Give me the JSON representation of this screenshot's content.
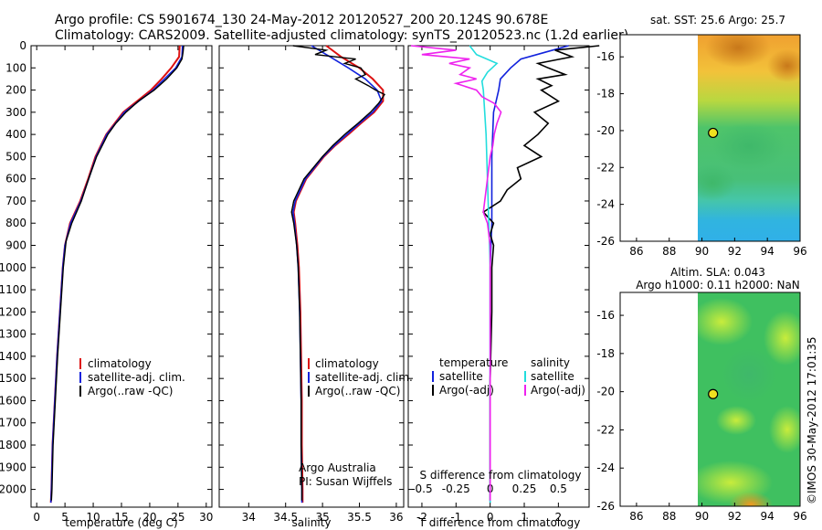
{
  "header": {
    "line1": "Argo profile: CS 5901674_130 24-May-2012 20120527_200 20.124S 90.678E",
    "line2": "Climatology: CARS2009. Satellite-adjusted climatology: synTS_20120523.nc (1.2d earlier)"
  },
  "colors": {
    "climatology": "#dd1111",
    "satellite": "#1122dd",
    "argo": "#000000",
    "sal_satellite": "#22dddd",
    "sal_argo": "#ee22ee"
  },
  "chart_data": [
    {
      "type": "line",
      "id": "temperature",
      "xlabel": "temperature (deg C)",
      "xlim": [
        -1,
        31
      ],
      "ylim": [
        2080,
        0
      ],
      "xticks": [
        "0",
        "5",
        "10",
        "15",
        "20",
        "25",
        "30"
      ],
      "yticks": [
        "0",
        "100",
        "200",
        "300",
        "400",
        "500",
        "600",
        "700",
        "800",
        "900",
        "1000",
        "1100",
        "1200",
        "1300",
        "1400",
        "1500",
        "1600",
        "1700",
        "1800",
        "1900",
        "2000"
      ],
      "legend": [
        "climatology",
        "satellite-adj. clim.",
        "Argo(..raw -QC)"
      ],
      "series": [
        {
          "name": "climatology",
          "depth": [
            0,
            50,
            100,
            150,
            200,
            300,
            400,
            500,
            600,
            700,
            800,
            900,
            1000,
            1200,
            1400,
            1600,
            1800,
            2000,
            2060
          ],
          "values": [
            25.3,
            25.2,
            23.8,
            22.1,
            20.2,
            15.3,
            12.3,
            10.4,
            9.1,
            7.7,
            5.9,
            5.0,
            4.6,
            4.1,
            3.6,
            3.2,
            2.8,
            2.6,
            2.5
          ]
        },
        {
          "name": "satellite-adj. clim.",
          "depth": [
            0,
            50,
            100,
            150,
            200,
            300,
            400,
            500,
            600,
            700,
            800,
            900,
            1000,
            1200,
            1400,
            1600,
            1800,
            2000,
            2060
          ],
          "values": [
            25.8,
            25.7,
            24.6,
            22.6,
            20.6,
            15.5,
            12.4,
            10.5,
            9.2,
            7.8,
            6.0,
            5.0,
            4.6,
            4.1,
            3.6,
            3.2,
            2.8,
            2.6,
            2.5
          ]
        },
        {
          "name": "Argo(..raw -QC)",
          "depth": [
            0,
            30,
            60,
            100,
            150,
            200,
            250,
            300,
            350,
            400,
            500,
            600,
            700,
            800,
            880,
            1000,
            1200,
            1400,
            1600,
            1800,
            2000,
            2050
          ],
          "values": [
            26.0,
            25.9,
            25.7,
            24.8,
            23.0,
            20.8,
            18.0,
            15.8,
            14.0,
            12.6,
            10.6,
            9.2,
            7.9,
            6.2,
            5.2,
            4.7,
            4.2,
            3.7,
            3.3,
            2.9,
            2.7,
            2.6
          ]
        }
      ]
    },
    {
      "type": "line",
      "id": "salinity",
      "xlabel": "salinity",
      "xlim": [
        33.6,
        36.1
      ],
      "ylim": [
        2080,
        0
      ],
      "xticks": [
        "34",
        "34.5",
        "35",
        "35.5",
        "36"
      ],
      "legend": [
        "climatology",
        "satellite-adj. clim.",
        "Argo(..raw -QC)"
      ],
      "annotation": [
        "Argo Australia",
        "PI: Susan Wijffels"
      ],
      "series": [
        {
          "name": "climatology",
          "depth": [
            0,
            50,
            100,
            150,
            200,
            250,
            300,
            350,
            400,
            450,
            500,
            600,
            700,
            750,
            800,
            900,
            1000,
            1200,
            1400,
            1600,
            1800,
            2000,
            2060
          ],
          "values": [
            35.05,
            35.25,
            35.5,
            35.68,
            35.82,
            35.82,
            35.7,
            35.52,
            35.35,
            35.17,
            35.02,
            34.78,
            34.64,
            34.61,
            34.63,
            34.66,
            34.68,
            34.7,
            34.71,
            34.72,
            34.72,
            34.73,
            34.73
          ]
        },
        {
          "name": "satellite-adj. clim.",
          "depth": [
            0,
            50,
            100,
            150,
            200,
            250,
            300,
            350,
            400,
            450,
            500,
            600,
            700,
            750,
            800,
            900,
            1000,
            1200,
            1400,
            1600,
            1800,
            2000,
            2060
          ],
          "values": [
            34.85,
            35.1,
            35.35,
            35.58,
            35.74,
            35.8,
            35.68,
            35.5,
            35.33,
            35.16,
            35.01,
            34.77,
            34.63,
            34.6,
            34.62,
            34.65,
            34.67,
            34.69,
            34.7,
            34.71,
            34.71,
            34.72,
            34.72
          ]
        },
        {
          "name": "Argo(..raw -QC)",
          "depth": [
            0,
            20,
            40,
            60,
            80,
            100,
            130,
            150,
            180,
            200,
            220,
            240,
            260,
            300,
            350,
            400,
            450,
            500,
            600,
            700,
            750,
            800,
            900,
            1000,
            1200,
            1400,
            1600,
            1800,
            2000,
            2050
          ],
          "values": [
            34.6,
            35.05,
            34.9,
            35.45,
            35.3,
            35.52,
            35.58,
            35.45,
            35.62,
            35.72,
            35.84,
            35.8,
            35.76,
            35.65,
            35.48,
            35.3,
            35.14,
            35.0,
            34.75,
            34.61,
            34.58,
            34.61,
            34.65,
            34.67,
            34.69,
            34.7,
            34.71,
            34.71,
            34.72,
            34.72
          ]
        }
      ]
    },
    {
      "type": "line",
      "id": "difference",
      "xlabel": "T difference from climatology",
      "top_label": "S difference from climatology",
      "xlim": [
        -2.4,
        2.9
      ],
      "ylim": [
        2080,
        0
      ],
      "xticks": [
        "-2",
        "-1",
        "0",
        "1",
        "2"
      ],
      "top_ticks": [
        "-0.5",
        "-0.25",
        "0",
        "0.25",
        "0.5"
      ],
      "legend_temperature": {
        "title": "temperature",
        "items": [
          "satellite",
          "Argo(-adj)"
        ]
      },
      "legend_salinity": {
        "title": "salinity",
        "items": [
          "satellite",
          "Argo(-adj)"
        ]
      },
      "series": [
        {
          "name": "temperature satellite",
          "depth": [
            0,
            30,
            60,
            100,
            150,
            200,
            300,
            500,
            800,
            1000,
            1500,
            2060
          ],
          "values": [
            2.3,
            1.6,
            0.9,
            0.6,
            0.3,
            0.25,
            0.1,
            0.05,
            0.05,
            0.0,
            0.0,
            0.0
          ]
        },
        {
          "name": "temperature Argo(-adj)",
          "depth": [
            0,
            20,
            50,
            80,
            100,
            130,
            150,
            180,
            200,
            250,
            300,
            350,
            400,
            450,
            500,
            550,
            600,
            650,
            700,
            750,
            800,
            850,
            900,
            1000,
            1200,
            1500,
            2000,
            2050
          ],
          "values": [
            3.2,
            1.9,
            2.4,
            1.4,
            1.7,
            2.2,
            1.4,
            1.8,
            1.5,
            2.0,
            1.3,
            1.7,
            1.4,
            1.0,
            1.5,
            0.8,
            0.9,
            0.5,
            0.3,
            -0.2,
            0.1,
            0.0,
            0.1,
            0.05,
            0.05,
            0.0,
            0.0,
            0.0
          ]
        },
        {
          "name": "salinity satellite",
          "depth": [
            0,
            40,
            80,
            120,
            160,
            200,
            300,
            400,
            600,
            800,
            1000,
            1500,
            2060
          ],
          "values": [
            -0.15,
            -0.1,
            0.05,
            -0.02,
            -0.06,
            -0.05,
            -0.04,
            -0.03,
            -0.02,
            -0.01,
            0.0,
            0.0,
            0.0
          ]
        },
        {
          "name": "salinity Argo(-adj)",
          "depth": [
            0,
            20,
            40,
            60,
            80,
            100,
            130,
            150,
            170,
            200,
            230,
            260,
            300,
            350,
            400,
            450,
            500,
            600,
            700,
            750,
            800,
            900,
            1000,
            1500,
            2000,
            2050
          ],
          "values": [
            -0.58,
            -0.25,
            -0.5,
            -0.15,
            -0.3,
            -0.15,
            -0.22,
            -0.1,
            -0.25,
            -0.1,
            -0.06,
            0.03,
            0.08,
            0.05,
            0.03,
            0.02,
            0.0,
            -0.02,
            -0.04,
            -0.05,
            -0.02,
            0.0,
            0.0,
            0.0,
            0.0,
            0.0
          ]
        }
      ]
    },
    {
      "type": "heatmap",
      "id": "sst-map",
      "title": "sat. SST: 25.6 Argo: 25.7",
      "xlim": [
        85,
        96
      ],
      "ylim": [
        -26,
        -14.8
      ],
      "xticks": [
        "86",
        "88",
        "90",
        "92",
        "94",
        "96"
      ],
      "yticks": [
        "-16",
        "-18",
        "-20",
        "-22",
        "-24",
        "-26"
      ],
      "data_extent": [
        89.9,
        96
      ],
      "marker": {
        "lon": 90.678,
        "lat": -20.124
      }
    },
    {
      "type": "heatmap",
      "id": "sla-map",
      "title": "Altim. SLA: 0.043",
      "subtitle": "Argo h1000: 0.11 h2000: NaN",
      "xlim": [
        85,
        96
      ],
      "ylim": [
        -26,
        -14.8
      ],
      "xticks": [
        "86",
        "88",
        "90",
        "92",
        "94",
        "96"
      ],
      "yticks": [
        "-16",
        "-18",
        "-20",
        "-22",
        "-24",
        "-26"
      ],
      "data_extent": [
        89.9,
        96
      ],
      "marker": {
        "lon": 90.678,
        "lat": -20.124
      }
    }
  ],
  "side_label": "©IMOS 30-May-2012 17:01:35"
}
